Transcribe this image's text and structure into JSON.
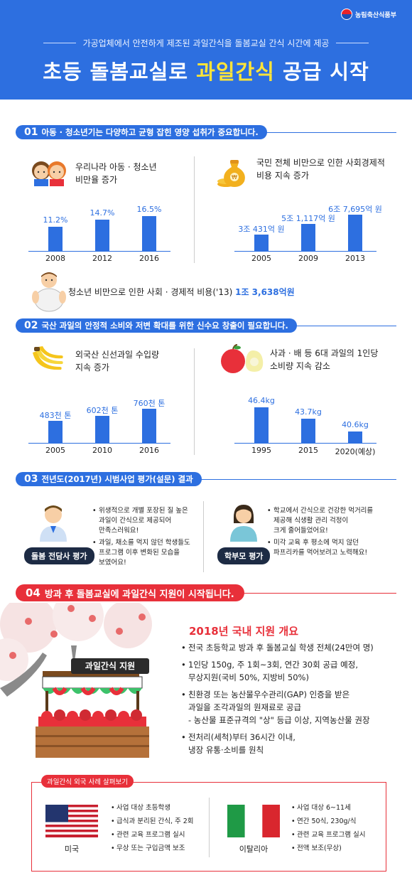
{
  "header": {
    "logo": "농림축산식품부",
    "subtitle": "가공업체에서 안전하게 제조된 과일간식을 돌봄교실 간식 시간에 제공",
    "title_pre": "초등 돌봄교실로 ",
    "title_highlight": "과일간식",
    "title_post": " 공급 시작"
  },
  "section1": {
    "num": "01",
    "heading": "아동 · 청소년기는 다양하고 균형 잡힌 영양 섭취가 중요합니다.",
    "left_title_1": "우리나라 아동 · 청소년",
    "left_title_2": "비만율 증가",
    "right_title_1": "국민 전체 비만으로 인한 사회경제적",
    "right_title_2": "비용 지속 증가",
    "note_text": "청소년 비만으로 인한 사회 · 경제적 비용('13) ",
    "note_value": "1조 3,638억원"
  },
  "section2": {
    "num": "02",
    "heading": "국산 과일의 안정적 소비와 저변 확대를 위한 신수요 창출이 필요합니다.",
    "left_title_1": "외국산 신선과일 수입량",
    "left_title_2": "지속 증가",
    "right_title_1": "사과 · 배 등 6대 과일의 1인당",
    "right_title_2": "소비량 지속 감소"
  },
  "section3": {
    "num": "03",
    "heading": "전년도(2017년) 시범사업 평가(설문) 결과",
    "left_label": "돌봄 전담사 평가",
    "left_items": [
      [
        "위생적으로 개별 포장된 질 높은",
        "과일이 간식으로 제공되어",
        "만족스러워요!"
      ],
      [
        "과일, 채소를 먹지 않던 학생들도",
        "프로그램 이후 변화된 모습을",
        "보였어요!"
      ]
    ],
    "right_label": "학부모 평가",
    "right_items": [
      [
        "학교에서 간식으로 건강한 먹거리를",
        "제공해 식생활 관리 걱정이",
        "크게 줄어들었어요!"
      ],
      [
        "미각 교육 후 평소에 먹지 않던",
        "파프리카를 먹어보려고 노력해요!"
      ]
    ]
  },
  "section4": {
    "num": "04",
    "heading": "방과 후 돌봄교실에 과일간식 지원이 시작됩니다.",
    "stall_sign": "과일간식 지원",
    "support_title": "2018년 국내 지원 개요",
    "support_items": [
      [
        "전국 초등학교 방과 후 돌봄교실 학생 전체(24만여 명)"
      ],
      [
        "1인당 150g, 주 1회~3회, 연간 30회 공급 예정,",
        "무상지원(국비 50%, 지방비 50%)"
      ],
      [
        "친환경 또는 농산물우수관리(GAP) 인증을 받은",
        "과일을 조각과일의 원재료로 공급",
        "- 농산물 표준규격의 \"상\" 등급 이상, 지역농산물 권장"
      ],
      [
        "전처리(세척)부터 36시간 이내,",
        "냉장 유통·소비를 원칙"
      ]
    ],
    "abroad_title": "과일간식 외국 사례 살펴보기",
    "usa_name": "미국",
    "usa_items": [
      "사업 대상 초등학생",
      "급식과 분리된 간식, 주 2회",
      "관련 교육 프로그램 실시",
      "무상 또는 구입금액 보조"
    ],
    "italy_name": "이탈리아",
    "italy_items": [
      "사업 대상 6~11세",
      "연간 50식, 230g/식",
      "관련 교육 프로그램 실시",
      "전액 보조(무상)"
    ]
  },
  "chart_data": [
    {
      "type": "bar",
      "title": "우리나라 아동 · 청소년 비만율 증가",
      "categories": [
        "2008",
        "2012",
        "2016"
      ],
      "values": [
        11.2,
        14.7,
        16.5
      ],
      "labels": [
        "11.2%",
        "14.7%",
        "16.5%"
      ],
      "ylim": [
        0,
        20
      ],
      "grid": false,
      "color": "#2d6fe0"
    },
    {
      "type": "bar",
      "title": "국민 전체 비만으로 인한 사회경제적 비용 지속 증가",
      "categories": [
        "2005",
        "2009",
        "2013"
      ],
      "values": [
        30431,
        51117,
        67695
      ],
      "labels": [
        "3조 431억 원",
        "5조 1,117억 원",
        "6조 7,695억 원"
      ],
      "ylim": [
        0,
        80000
      ],
      "grid": false,
      "color": "#2d6fe0"
    },
    {
      "type": "bar",
      "title": "외국산 신선과일 수입량 지속 증가",
      "categories": [
        "2005",
        "2010",
        "2016"
      ],
      "values": [
        483,
        602,
        760
      ],
      "labels": [
        "483천 톤",
        "602천 톤",
        "760천 톤"
      ],
      "ylim": [
        0,
        950
      ],
      "grid": false,
      "color": "#2d6fe0"
    },
    {
      "type": "bar",
      "title": "사과 · 배 등 6대 과일의 1인당 소비량 지속 감소",
      "categories": [
        "1995",
        "2015",
        "2020(예상)"
      ],
      "values": [
        46.4,
        43.7,
        40.6
      ],
      "labels": [
        "46.4kg",
        "43.7kg",
        "40.6kg"
      ],
      "ylim": [
        38,
        48
      ],
      "grid": false,
      "color": "#2d6fe0"
    }
  ]
}
